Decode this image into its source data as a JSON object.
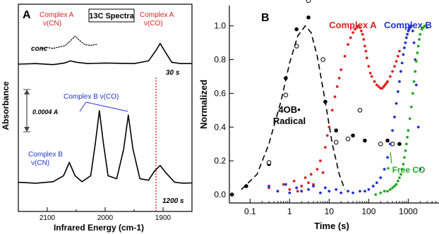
{
  "chart_data": [
    {
      "type": "line",
      "panel_label": "A",
      "title": "13C Spectra",
      "xlabel": "Infrared Energy (cm-1)",
      "ylabel": "Absorbance",
      "xlim": [
        2150,
        1850
      ],
      "x_ticks": [
        2100,
        2000,
        1900
      ],
      "series": [
        {
          "name": "conc",
          "style": "dotted",
          "x": [
            2110,
            2100,
            2090,
            2080,
            2070,
            2060,
            2052,
            2045,
            2035,
            2025,
            2015
          ],
          "y": [
            0.05,
            0.12,
            0.06,
            0.15,
            0.22,
            0.55,
            0.85,
            0.6,
            0.3,
            0.25,
            0.32
          ]
        },
        {
          "name": "30 s",
          "style": "solid",
          "x": [
            2150,
            2120,
            2090,
            2070,
            2060,
            2050,
            2030,
            2000,
            1950,
            1925,
            1912,
            1905,
            1898,
            1885,
            1870,
            1850
          ],
          "y": [
            0.08,
            0.1,
            0.06,
            0.12,
            0.2,
            0.15,
            0.1,
            0.12,
            0.1,
            0.2,
            0.6,
            0.85,
            0.6,
            0.15,
            0.1,
            0.1
          ]
        },
        {
          "name": "1200 s",
          "style": "solid",
          "x": [
            2150,
            2120,
            2090,
            2072,
            2062,
            2052,
            2040,
            2025,
            2017,
            2010,
            2003,
            1995,
            1980,
            1968,
            1960,
            1952,
            1940,
            1925,
            1915,
            1905,
            1895,
            1880,
            1865,
            1850
          ],
          "y": [
            0.08,
            0.05,
            0.1,
            0.3,
            0.75,
            0.3,
            0.1,
            0.3,
            1.4,
            2.5,
            1.4,
            0.3,
            0.2,
            1.2,
            2.35,
            1.2,
            0.2,
            0.15,
            0.45,
            0.65,
            0.4,
            0.08,
            0.05,
            0.06
          ]
        }
      ],
      "annotations": {
        "complex_a_cn_name": "Complex A",
        "complex_a_cn_mode": "ν(CN)",
        "complex_a_co_name": "Complex A",
        "complex_a_co_mode": "ν(CO)",
        "complex_b_co": "Complex B  ν(CO)",
        "complex_b_cn_name": "Complex B",
        "complex_b_cn_mode": "ν(CN)",
        "conc": "conc",
        "t30": "30 s",
        "t1200": "1200 s",
        "scale_bar": "0.0004 A"
      },
      "colors": {
        "complex_a": "#dd2222",
        "complex_b": "#2233cc",
        "trace": "#000000"
      }
    },
    {
      "type": "scatter",
      "panel_label": "B",
      "xlabel": "Time (s)",
      "ylabel": "Normalized",
      "x_scale": "log",
      "xlim": [
        0.03,
        6000
      ],
      "ylim": [
        -0.05,
        1.12
      ],
      "x_ticks": [
        0.1,
        1,
        10,
        100,
        1000
      ],
      "x_tick_labels": [
        "0.1",
        "1",
        "10",
        "100",
        "1000"
      ],
      "y_ticks": [
        0.0,
        0.2,
        0.4,
        0.6,
        0.8,
        1.0
      ],
      "y_tick_labels": [
        "0.0",
        "0.2",
        "0.4",
        "0.6",
        "0.8",
        "1.0"
      ],
      "labels": {
        "radical_line1": "4OB•",
        "radical_line2": "Radical",
        "complex_a": "Complex A",
        "complex_b": "Complex B",
        "free_co": "* Free CO"
      },
      "series": [
        {
          "name": "4OB• Radical (filled)",
          "marker": "filled-circle",
          "color": "#000000",
          "x": [
            0.035,
            0.08,
            0.3,
            0.8,
            1.5,
            3,
            8,
            15,
            40,
            80,
            300,
            600
          ],
          "y": [
            0.0,
            0.05,
            0.18,
            0.69,
            0.98,
            1.05,
            0.55,
            0.38,
            0.35,
            0.32,
            0.32,
            0.3
          ]
        },
        {
          "name": "4OB• Radical (open)",
          "marker": "open-circle",
          "color": "#000000",
          "x": [
            0.3,
            0.8,
            1.5,
            3,
            7,
            15,
            30,
            60,
            200,
            400
          ],
          "y": [
            0.19,
            0.59,
            0.88,
            1.15,
            0.8,
            0.31,
            0.33,
            0.5,
            0.3,
            0.3
          ]
        },
        {
          "name": "4OB• Radical fit",
          "marker": "dashed-line",
          "color": "#000000",
          "x": [
            0.06,
            0.15,
            0.3,
            0.6,
            1,
            1.6,
            2.5,
            3.5,
            5,
            8,
            12,
            18,
            25
          ],
          "y": [
            0.03,
            0.12,
            0.3,
            0.55,
            0.78,
            0.94,
            1.0,
            0.96,
            0.82,
            0.55,
            0.3,
            0.12,
            0.03
          ]
        },
        {
          "name": "Complex A",
          "marker": "filled-dot",
          "color": "#dd2222",
          "x": [
            0.3,
            0.5,
            0.7,
            1,
            1.3,
            1.6,
            2,
            2.5,
            3,
            3.5,
            4,
            5,
            6,
            7,
            8,
            9,
            10,
            12,
            14,
            16,
            18,
            20,
            25,
            30,
            35,
            40,
            45,
            50,
            55,
            60,
            65,
            70,
            75,
            80,
            85,
            90,
            100,
            110,
            120,
            140,
            160,
            180,
            200,
            220,
            240,
            260,
            280,
            300,
            350,
            400,
            450,
            500,
            550,
            600
          ],
          "y": [
            0.04,
            0.02,
            0.06,
            0.03,
            0.08,
            0.02,
            0.05,
            0.1,
            0.07,
            0.12,
            0.06,
            0.15,
            0.2,
            0.13,
            0.28,
            0.35,
            0.4,
            0.5,
            0.58,
            0.64,
            0.69,
            0.74,
            0.82,
            0.89,
            0.93,
            0.96,
            0.98,
            0.99,
            1.0,
            0.99,
            0.97,
            0.95,
            0.92,
            0.88,
            0.85,
            0.81,
            0.76,
            0.72,
            0.7,
            0.67,
            0.65,
            0.64,
            0.63,
            0.63,
            0.64,
            0.65,
            0.66,
            0.67,
            0.7,
            0.73,
            0.76,
            0.79,
            0.82,
            0.85
          ]
        },
        {
          "name": "Complex B",
          "marker": "filled-dot",
          "color": "#2233cc",
          "x": [
            0.3,
            0.5,
            0.8,
            1,
            1.5,
            2,
            3,
            4,
            6,
            8,
            10,
            15,
            20,
            30,
            40,
            60,
            80,
            100,
            130,
            160,
            200,
            250,
            300,
            350,
            400,
            450,
            500,
            550,
            600,
            650,
            700,
            750,
            800,
            850,
            900,
            950,
            1000,
            1050,
            1100,
            1150,
            1200,
            1300,
            1400,
            1500,
            1600,
            1800,
            2000
          ],
          "y": [
            0.05,
            0.02,
            0.06,
            0.01,
            0.04,
            0.02,
            0.03,
            0.05,
            0.01,
            0.04,
            0.02,
            0.03,
            0.01,
            0.02,
            0.01,
            0.02,
            0.02,
            0.03,
            0.05,
            0.07,
            0.1,
            0.15,
            0.22,
            0.3,
            0.38,
            0.46,
            0.54,
            0.61,
            0.67,
            0.73,
            0.78,
            0.83,
            0.87,
            0.9,
            0.93,
            0.95,
            0.97,
            0.98,
            0.99,
            1.0,
            1.0,
            0.97,
            0.9,
            0.8,
            0.65,
            0.4,
            0.15
          ]
        },
        {
          "name": "* Free CO",
          "marker": "filled-dot",
          "color": "#22aa22",
          "x": [
            150,
            200,
            250,
            300,
            350,
            400,
            450,
            500,
            550,
            600,
            650,
            700,
            750,
            800,
            850,
            900,
            950,
            1000,
            1100,
            1200,
            1300,
            1400,
            1500,
            1600,
            1700,
            1800,
            1900,
            2000,
            2200,
            2400,
            2600,
            2800,
            3000
          ],
          "y": [
            0.0,
            0.01,
            0.02,
            0.02,
            0.03,
            0.04,
            0.05,
            0.06,
            0.08,
            0.1,
            0.12,
            0.15,
            0.18,
            0.22,
            0.26,
            0.3,
            0.34,
            0.38,
            0.45,
            0.52,
            0.6,
            0.67,
            0.73,
            0.79,
            0.84,
            0.88,
            0.92,
            0.95,
            0.98,
            0.99,
            1.0,
            1.0,
            0.99
          ]
        }
      ],
      "colors": {
        "complex_a": "#dd2222",
        "complex_b": "#2233cc",
        "free_co": "#22aa22",
        "radical": "#000000"
      }
    }
  ]
}
